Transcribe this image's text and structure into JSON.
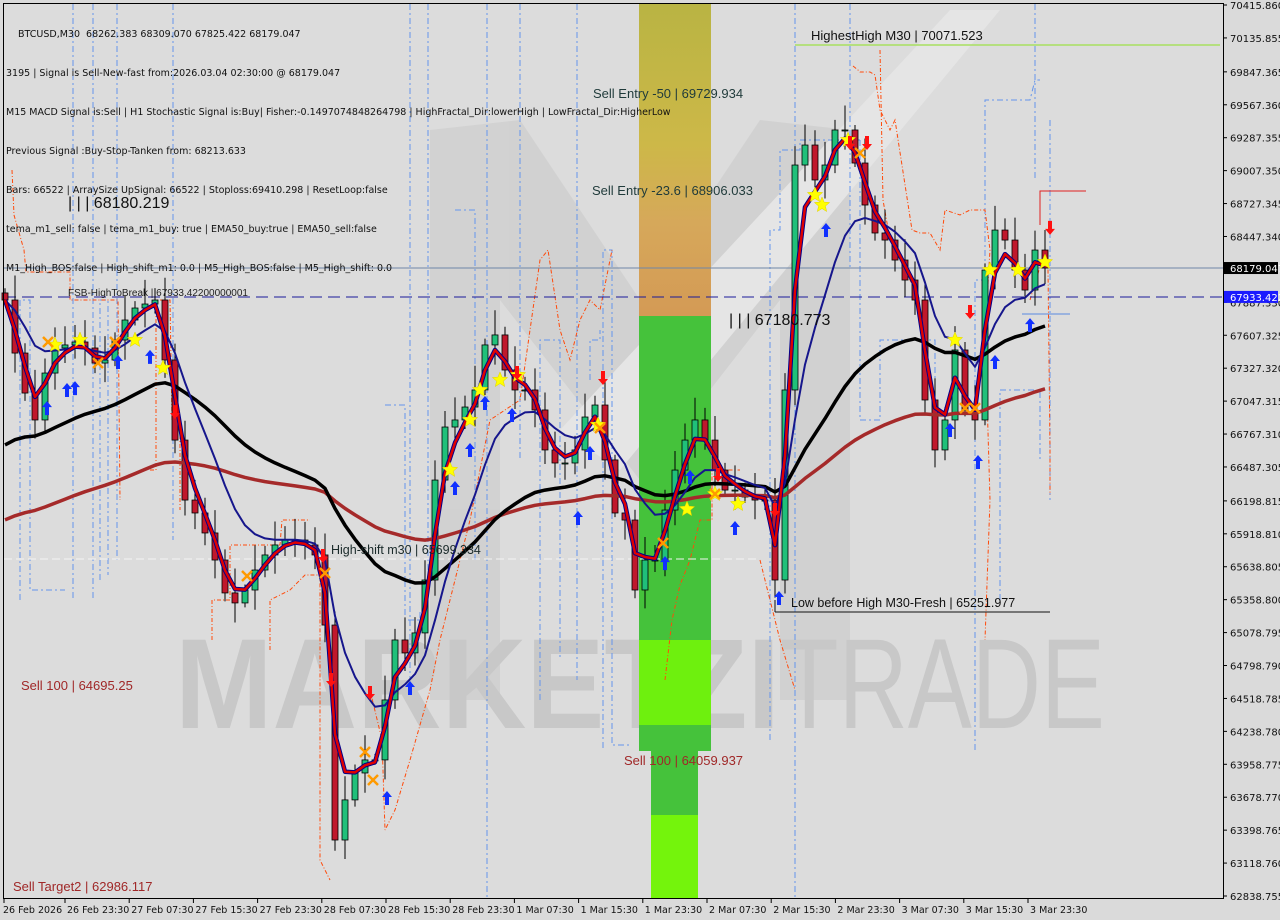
{
  "header": {
    "symbol_line": "BTCUSD,M30  68262.383 68309.070 67825.422 68179.047",
    "info_lines": [
      "3195 | Signal is Sell-New-fast from:2026.03.04 02:30:00 @ 68179.047",
      "M15 MACD Signal is:Sell | H1 Stochastic Signal is:Buy| Fisher:-0.1497074848264798 | HighFractal_Dir:lowerHigh | LowFractal_Dir:HigherLow",
      "Previous Signal :Buy-Stop-Tanken from: 68213.633",
      "Bars: 66522 | ArraySize UpSignal: 66522 | Stoploss:69410.298 | ResetLoop:false",
      "tema_m1_sell: false | tema_m1_buy: true | EMA50_buy:true | EMA50_sell:false",
      "M1_High_BOS:false | High_shift_m1: 0.0 | M5_High_BOS:false | M5_High_shift: 0.0"
    ]
  },
  "annotations": {
    "highest_high": "HighestHigh    M30 | 70071.523",
    "sell_entry_50": "Sell Entry -50 | 69729.934",
    "sell_entry_236": "Sell Entry -23.6 | 68906.033",
    "level_68180": "| | | 68180.219",
    "fsb_high": "FSB-HighToBreak | 67933.42200000001",
    "level_67180": "| | | 67180.773",
    "high_shift": "High-shift m30 | 65699.334",
    "low_before_high": "Low before High    M30-Fresh | 65251.977",
    "sell_100_a": "Sell 100 | 64695.25",
    "sell_100_b": "Sell 100 | 64059.937",
    "sell_target2": "Sell Target2 | 62986.117"
  },
  "watermark": {
    "bold": "MARKETZI",
    "light": "TRADE"
  },
  "colors": {
    "background": "#dadada",
    "bull": "#20c07a",
    "bear": "#c0182c",
    "ema_fast": "#e00000",
    "ma_blue": "#16168c",
    "ma_black": "#000000",
    "ma_brown": "#a52a2a",
    "sell_text": "#a02828",
    "current_price_bg": "#000000",
    "break_level_bg": "#1a1aff"
  },
  "chart_data": {
    "type": "candlestick",
    "symbol": "BTCUSD",
    "timeframe": "M30",
    "ylim": [
      62838.755,
      70415.86
    ],
    "y_ticks": [
      "70415.860",
      "70135.855",
      "69847.365",
      "69567.360",
      "69287.355",
      "69007.350",
      "68727.345",
      "68447.340",
      "67887.330",
      "67607.325",
      "67327.320",
      "67047.315",
      "66767.310",
      "66487.305",
      "66198.815",
      "65918.810",
      "65638.805",
      "65358.800",
      "65078.795",
      "64798.790",
      "64518.785",
      "64238.780",
      "63958.775",
      "63678.770",
      "63398.765",
      "63118.760",
      "62838.755"
    ],
    "x_ticks": [
      "26 Feb 2026",
      "26 Feb 23:30",
      "27 Feb 07:30",
      "27 Feb 15:30",
      "27 Feb 23:30",
      "28 Feb 07:30",
      "28 Feb 15:30",
      "28 Feb 23:30",
      "1 Mar 07:30",
      "1 Mar 15:30",
      "1 Mar 23:30",
      "2 Mar 07:30",
      "2 Mar 15:30",
      "2 Mar 23:30",
      "3 Mar 07:30",
      "3 Mar 15:30",
      "3 Mar 23:30"
    ],
    "current_price": "68179.047",
    "break_level": "67933.422",
    "closes": [
      67907,
      67456,
      67116,
      66887,
      67286,
      67499,
      67525,
      67550,
      67499,
      67371,
      67397,
      67567,
      67737,
      67839,
      67873,
      67907,
      67397,
      66716,
      66206,
      66096,
      65926,
      65696,
      65416,
      65331,
      65441,
      65611,
      65739,
      65824,
      65866,
      65866,
      65824,
      65739,
      65143,
      63315,
      63656,
      63885,
      63996,
      63996,
      64506,
      65016,
      64906,
      65076,
      65526,
      66376,
      66827,
      66887,
      66997,
      67142,
      67525,
      67610,
      67312,
      67142,
      67142,
      66972,
      66632,
      66521,
      66521,
      66632,
      66912,
      67014,
      66547,
      66096,
      66036,
      65441,
      65696,
      65696,
      66121,
      66461,
      66716,
      66887,
      66716,
      66461,
      66291,
      66291,
      66232,
      66206,
      66206,
      65526,
      67142,
      69055,
      69225,
      68928,
      69055,
      69353,
      69353,
      69072,
      68715,
      68477,
      68417,
      68247,
      68077,
      67907,
      67057,
      66632,
      66887,
      67482,
      66972,
      66887,
      68162,
      68502,
      68417,
      68162,
      67992,
      68332,
      68179
    ],
    "markers": {
      "stars": [
        [
          5,
          67525
        ],
        [
          7.5,
          67567
        ],
        [
          13,
          67567
        ],
        [
          15.8,
          67329
        ],
        [
          44.5,
          66462
        ],
        [
          46.5,
          66887
        ],
        [
          47.5,
          67142
        ],
        [
          49.5,
          67227
        ],
        [
          51.3,
          67269
        ],
        [
          59.3,
          66845
        ],
        [
          68.2,
          66129
        ],
        [
          71,
          66257
        ],
        [
          73.3,
          66172
        ],
        [
          81,
          68800
        ],
        [
          81.7,
          68715
        ],
        [
          84.3,
          69268
        ],
        [
          95,
          67567
        ],
        [
          98.5,
          68162
        ],
        [
          101.3,
          68162
        ],
        [
          104,
          68230
        ]
      ],
      "up_arrows": [
        [
          4.2,
          66988
        ],
        [
          6.2,
          67142
        ],
        [
          7,
          67158
        ],
        [
          11.3,
          67380
        ],
        [
          14.5,
          67423
        ],
        [
          38.2,
          63672
        ],
        [
          40.5,
          64608
        ],
        [
          45,
          66308
        ],
        [
          46.5,
          66632
        ],
        [
          48,
          67031
        ],
        [
          50.7,
          66929
        ],
        [
          57.3,
          66053
        ],
        [
          58.5,
          66606
        ],
        [
          66,
          65670
        ],
        [
          68.5,
          66402
        ],
        [
          73,
          65968
        ],
        [
          77.4,
          65373
        ],
        [
          82.1,
          68502
        ],
        [
          94.5,
          66802
        ],
        [
          97.3,
          66530
        ],
        [
          99,
          67380
        ],
        [
          102.5,
          67694
        ]
      ],
      "down_arrows": [
        [
          17,
          66954
        ],
        [
          31.8,
          65730
        ],
        [
          32.6,
          64676
        ],
        [
          36.5,
          64565
        ],
        [
          51.2,
          67286
        ],
        [
          59.8,
          67244
        ],
        [
          71.3,
          66419
        ],
        [
          77,
          66121
        ],
        [
          84.5,
          69242
        ],
        [
          86.2,
          69242
        ],
        [
          96.5,
          67805
        ],
        [
          104.5,
          68520
        ]
      ],
      "crosses": [
        [
          4.3,
          67550
        ],
        [
          9.3,
          67371
        ],
        [
          11,
          67550
        ],
        [
          24.2,
          65560
        ],
        [
          32,
          65586
        ],
        [
          36,
          64063
        ],
        [
          36.8,
          63825
        ],
        [
          59.5,
          66819
        ],
        [
          65.8,
          65841
        ],
        [
          71,
          66257
        ],
        [
          85.5,
          69157
        ],
        [
          96,
          66988
        ],
        [
          97,
          66988
        ]
      ]
    },
    "grid": false
  }
}
